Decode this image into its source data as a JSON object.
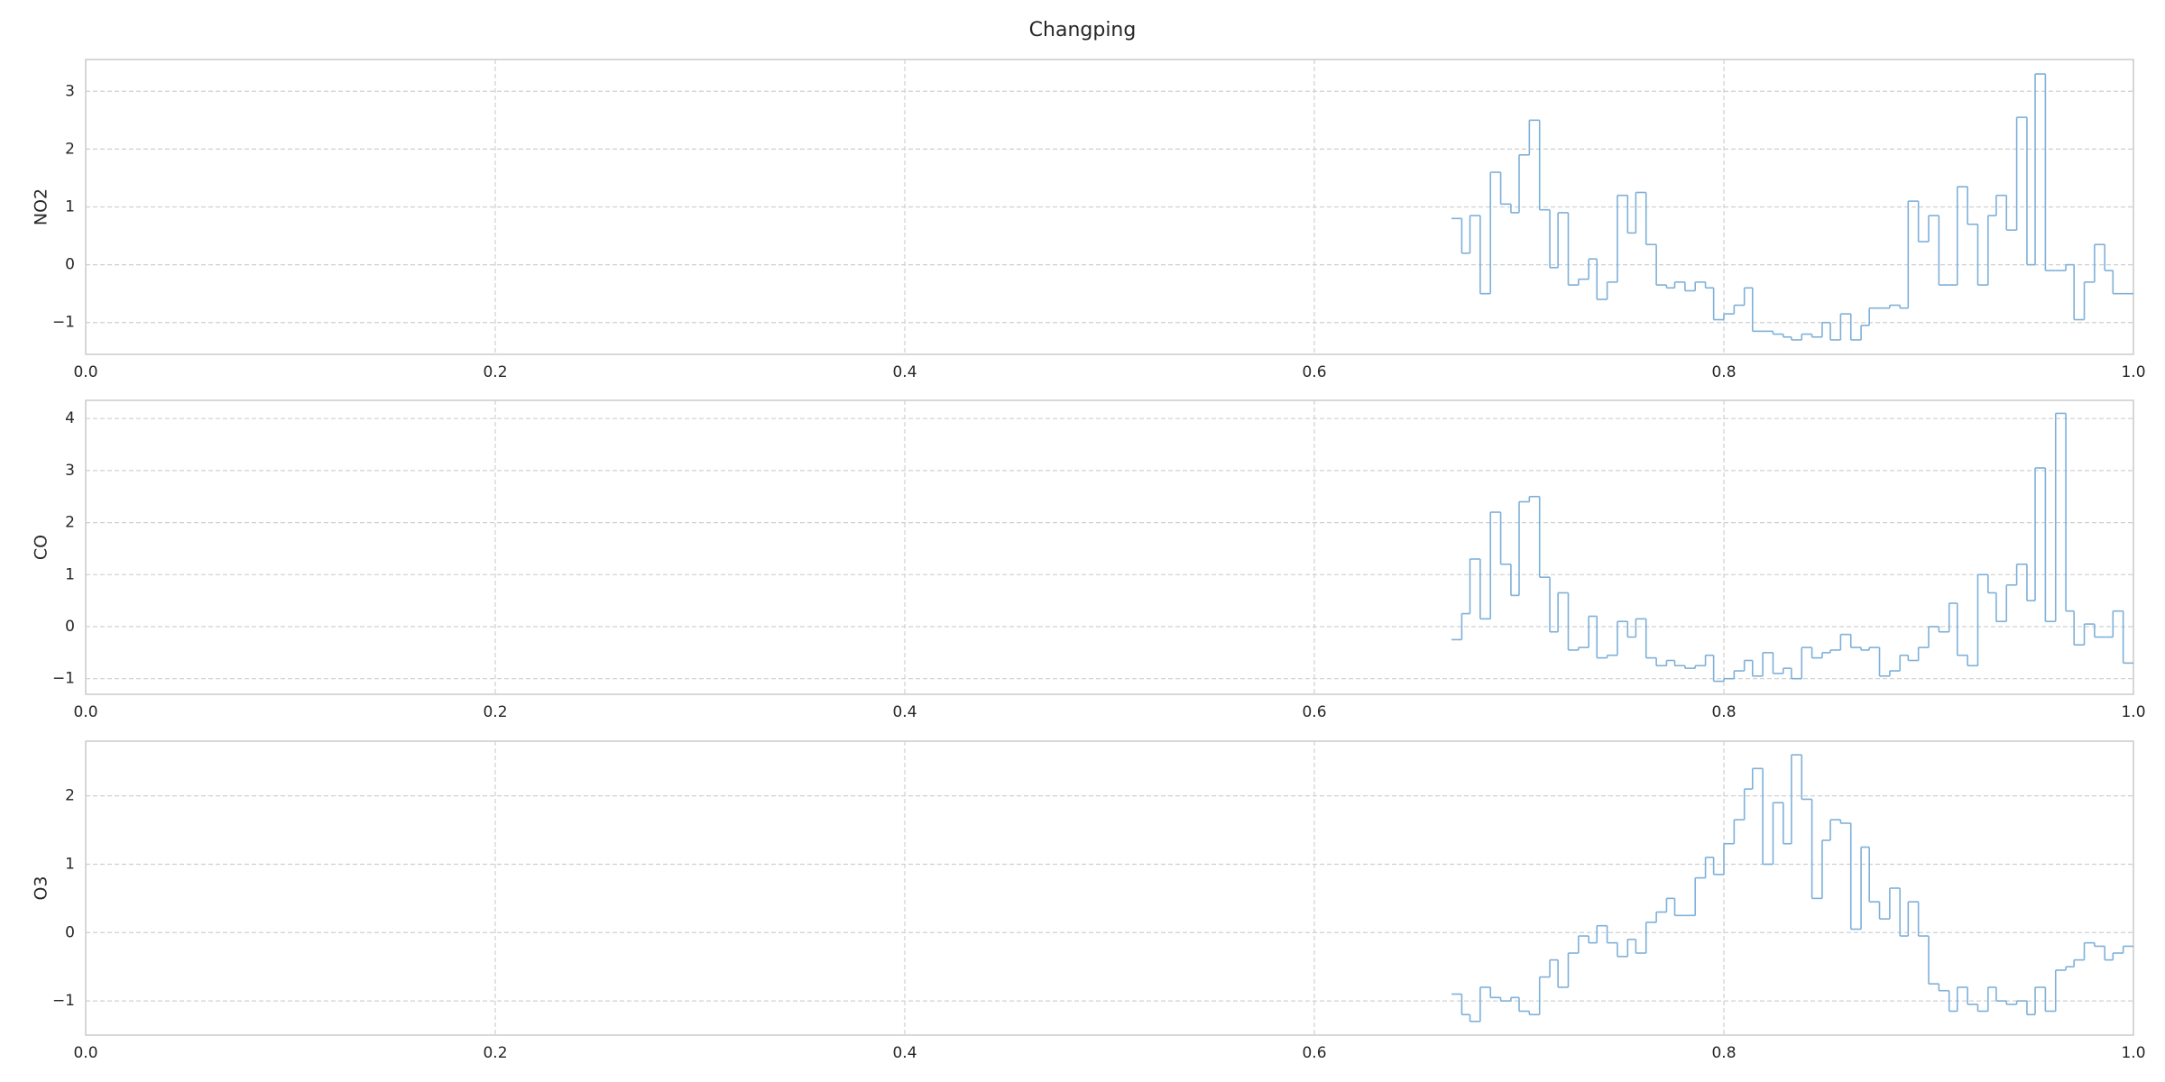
{
  "title": "Changping",
  "chart_data": [
    {
      "type": "step",
      "ylabel": "NO2",
      "x": [
        0.667,
        0.672,
        0.676,
        0.681,
        0.686,
        0.691,
        0.696,
        0.7,
        0.705,
        0.71,
        0.715,
        0.719,
        0.724,
        0.729,
        0.734,
        0.738,
        0.743,
        0.748,
        0.753,
        0.757,
        0.762,
        0.767,
        0.772,
        0.776,
        0.781,
        0.786,
        0.791,
        0.795,
        0.8,
        0.805,
        0.81,
        0.814,
        0.819,
        0.824,
        0.829,
        0.833,
        0.838,
        0.843,
        0.848,
        0.852,
        0.857,
        0.862,
        0.867,
        0.871,
        0.876,
        0.881,
        0.886,
        0.89,
        0.895,
        0.9,
        0.905,
        0.91,
        0.914,
        0.919,
        0.924,
        0.929,
        0.933,
        0.938,
        0.943,
        0.948,
        0.952,
        0.957,
        0.962,
        0.967,
        0.971,
        0.976,
        0.981,
        0.986,
        0.99,
        0.995
      ],
      "values": [
        0.8,
        0.2,
        0.85,
        -0.5,
        1.6,
        1.05,
        0.9,
        1.9,
        2.5,
        0.95,
        -0.05,
        0.9,
        -0.35,
        -0.25,
        0.1,
        -0.6,
        -0.3,
        1.2,
        0.55,
        1.25,
        0.35,
        -0.35,
        -0.4,
        -0.3,
        -0.45,
        -0.3,
        -0.4,
        -0.95,
        -0.85,
        -0.7,
        -0.4,
        -1.15,
        -1.15,
        -1.2,
        -1.25,
        -1.3,
        -1.2,
        -1.25,
        -1.0,
        -1.3,
        -0.85,
        -1.3,
        -1.05,
        -0.75,
        -0.75,
        -0.7,
        -0.75,
        1.1,
        0.4,
        0.85,
        -0.35,
        -0.35,
        1.35,
        0.7,
        -0.35,
        0.85,
        1.2,
        0.6,
        2.55,
        0.0,
        3.3,
        -0.1,
        -0.1,
        0.0,
        -0.95,
        -0.3,
        0.35,
        -0.1,
        -0.5,
        -0.5
      ],
      "color": "#7eb0d9",
      "xlim": [
        0,
        1
      ],
      "xticks": [
        {
          "value": 0,
          "label": "0.0"
        },
        0.2,
        0.4,
        0.6,
        0.8,
        {
          "value": 1,
          "label": "1.0"
        }
      ],
      "ylim": [
        -1.55,
        3.55
      ],
      "yticks": [
        {
          "value": -1,
          "label": "−1"
        },
        0,
        1,
        2,
        3
      ],
      "grid": true
    },
    {
      "type": "step",
      "ylabel": "CO",
      "x": [
        0.667,
        0.672,
        0.676,
        0.681,
        0.686,
        0.691,
        0.696,
        0.7,
        0.705,
        0.71,
        0.715,
        0.719,
        0.724,
        0.729,
        0.734,
        0.738,
        0.743,
        0.748,
        0.753,
        0.757,
        0.762,
        0.767,
        0.772,
        0.776,
        0.781,
        0.786,
        0.791,
        0.795,
        0.8,
        0.805,
        0.81,
        0.814,
        0.819,
        0.824,
        0.829,
        0.833,
        0.838,
        0.843,
        0.848,
        0.852,
        0.857,
        0.862,
        0.867,
        0.871,
        0.876,
        0.881,
        0.886,
        0.89,
        0.895,
        0.9,
        0.905,
        0.91,
        0.914,
        0.919,
        0.924,
        0.929,
        0.933,
        0.938,
        0.943,
        0.948,
        0.952,
        0.957,
        0.962,
        0.967,
        0.971,
        0.976,
        0.981,
        0.986,
        0.99,
        0.995
      ],
      "values": [
        -0.25,
        0.25,
        1.3,
        0.15,
        2.2,
        1.2,
        0.6,
        2.4,
        2.5,
        0.95,
        -0.1,
        0.65,
        -0.45,
        -0.4,
        0.2,
        -0.6,
        -0.55,
        0.1,
        -0.2,
        0.15,
        -0.6,
        -0.75,
        -0.65,
        -0.75,
        -0.8,
        -0.75,
        -0.55,
        -1.05,
        -1.0,
        -0.85,
        -0.65,
        -0.95,
        -0.5,
        -0.9,
        -0.8,
        -1.0,
        -0.4,
        -0.6,
        -0.5,
        -0.45,
        -0.15,
        -0.4,
        -0.45,
        -0.4,
        -0.95,
        -0.85,
        -0.55,
        -0.65,
        -0.4,
        0.0,
        -0.1,
        0.45,
        -0.55,
        -0.75,
        1.0,
        0.65,
        0.1,
        0.8,
        1.2,
        0.5,
        3.05,
        0.1,
        4.1,
        0.3,
        -0.35,
        0.05,
        -0.2,
        -0.2,
        0.3,
        -0.7
      ],
      "color": "#7eb0d9",
      "xlim": [
        0,
        1
      ],
      "xticks": [
        {
          "value": 0,
          "label": "0.0"
        },
        0.2,
        0.4,
        0.6,
        0.8,
        {
          "value": 1,
          "label": "1.0"
        }
      ],
      "ylim": [
        -1.3,
        4.35
      ],
      "yticks": [
        {
          "value": -1,
          "label": "−1"
        },
        0,
        1,
        2,
        3,
        4
      ],
      "grid": true
    },
    {
      "type": "step",
      "ylabel": "O3",
      "x": [
        0.667,
        0.672,
        0.676,
        0.681,
        0.686,
        0.691,
        0.696,
        0.7,
        0.705,
        0.71,
        0.715,
        0.719,
        0.724,
        0.729,
        0.734,
        0.738,
        0.743,
        0.748,
        0.753,
        0.757,
        0.762,
        0.767,
        0.772,
        0.776,
        0.781,
        0.786,
        0.791,
        0.795,
        0.8,
        0.805,
        0.81,
        0.814,
        0.819,
        0.824,
        0.829,
        0.833,
        0.838,
        0.843,
        0.848,
        0.852,
        0.857,
        0.862,
        0.867,
        0.871,
        0.876,
        0.881,
        0.886,
        0.89,
        0.895,
        0.9,
        0.905,
        0.91,
        0.914,
        0.919,
        0.924,
        0.929,
        0.933,
        0.938,
        0.943,
        0.948,
        0.952,
        0.957,
        0.962,
        0.967,
        0.971,
        0.976,
        0.981,
        0.986,
        0.99,
        0.995
      ],
      "values": [
        -0.9,
        -1.2,
        -1.3,
        -0.8,
        -0.95,
        -1.0,
        -0.95,
        -1.15,
        -1.2,
        -0.65,
        -0.4,
        -0.8,
        -0.3,
        -0.05,
        -0.15,
        0.1,
        -0.15,
        -0.35,
        -0.1,
        -0.3,
        0.15,
        0.3,
        0.5,
        0.25,
        0.25,
        0.8,
        1.1,
        0.85,
        1.3,
        1.65,
        2.1,
        2.4,
        1.0,
        1.9,
        1.3,
        2.6,
        1.95,
        0.5,
        1.35,
        1.65,
        1.6,
        0.05,
        1.25,
        0.45,
        0.2,
        0.65,
        -0.05,
        0.45,
        -0.05,
        -0.75,
        -0.85,
        -1.15,
        -0.8,
        -1.05,
        -1.15,
        -0.8,
        -1.0,
        -1.05,
        -1.0,
        -1.2,
        -0.8,
        -1.15,
        -0.55,
        -0.5,
        -0.4,
        -0.15,
        -0.2,
        -0.4,
        -0.3,
        -0.2
      ],
      "color": "#7eb0d9",
      "xlim": [
        0,
        1
      ],
      "xticks": [
        {
          "value": 0,
          "label": "0.0"
        },
        0.2,
        0.4,
        0.6,
        0.8,
        {
          "value": 1,
          "label": "1.0"
        }
      ],
      "ylim": [
        -1.5,
        2.8
      ],
      "yticks": [
        {
          "value": -1,
          "label": "−1"
        },
        0,
        1,
        2
      ],
      "grid": true
    }
  ]
}
